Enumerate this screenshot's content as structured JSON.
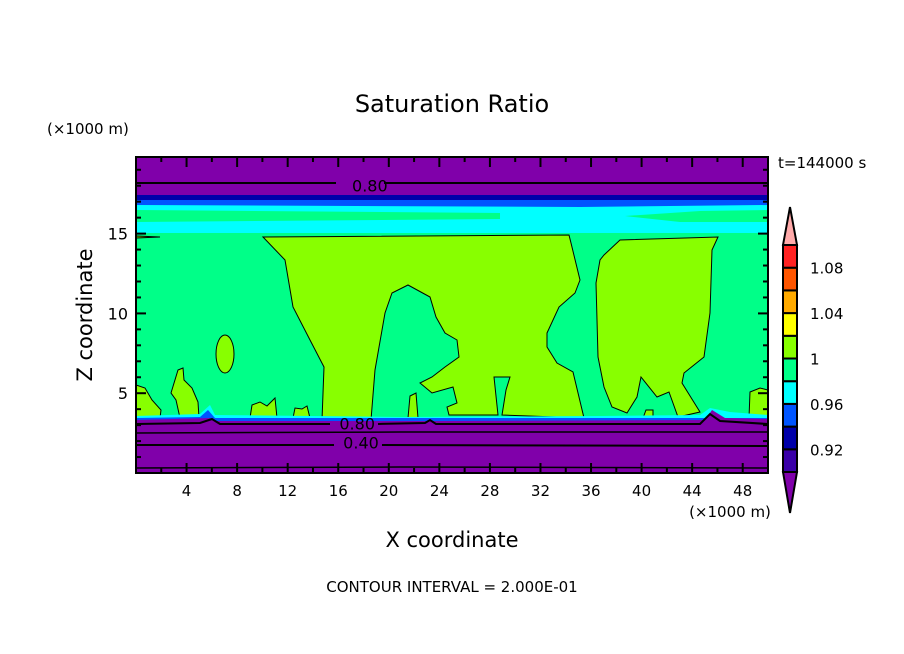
{
  "chart_data": {
    "type": "heatmap",
    "subtype": "filled-contour",
    "title": "Saturation Ratio",
    "xlabel": "X coordinate",
    "ylabel": "Z coordinate",
    "x_unit_label": "(×1000 m)",
    "y_unit_label": "(×1000 m)",
    "xlim": [
      0,
      50
    ],
    "ylim": [
      0,
      19.8
    ],
    "x_ticks": [
      4,
      8,
      12,
      16,
      20,
      24,
      28,
      32,
      36,
      40,
      44,
      48
    ],
    "x_minor_step": 2,
    "y_ticks": [
      5,
      10,
      15
    ],
    "y_minor_step": 1,
    "time_label": "t=144000 s",
    "footer": "CONTOUR INTERVAL = 2.000E-01",
    "contour_labels": [
      {
        "text": "0.80",
        "x": 18.5,
        "z": 18.0
      },
      {
        "text": "0.80",
        "x": 17.5,
        "z": 3.1
      },
      {
        "text": "0.40",
        "x": 17.8,
        "z": 1.9
      }
    ],
    "colorbar": {
      "levels": [
        0.9,
        0.92,
        0.94,
        0.96,
        0.98,
        1.0,
        1.02,
        1.04,
        1.06,
        1.08,
        1.1
      ],
      "colors_low_to_high": [
        "#3a00a8",
        "#0000aa",
        "#0055ff",
        "#00ffff",
        "#00ff88",
        "#88ff00",
        "#ffff00",
        "#ffaa00",
        "#ff5500",
        "#ff2222"
      ],
      "under_color": "#8000aa",
      "over_color": "#ffaaaa",
      "tick_labels": [
        {
          "value": 0.92,
          "text": "0.92"
        },
        {
          "value": 0.96,
          "text": "0.96"
        },
        {
          "value": 1.0,
          "text": "1"
        },
        {
          "value": 1.04,
          "text": "1.04"
        },
        {
          "value": 1.08,
          "text": "1.08"
        }
      ]
    }
  }
}
